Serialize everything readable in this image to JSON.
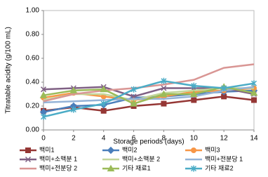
{
  "chart_data": {
    "type": "line",
    "y_label": "Titratable acidity (g/100 mL)",
    "x_label": "Storage periods (days)",
    "x": [
      0,
      2,
      4,
      6,
      8,
      10,
      12,
      14
    ],
    "xlim": [
      0,
      14
    ],
    "xticks": [
      0,
      2,
      4,
      6,
      8,
      10,
      12,
      14
    ],
    "ylim": [
      0,
      1
    ],
    "yticks": [
      {
        "value": 0,
        "label": "0.00"
      },
      {
        "value": 0.2,
        "label": "0.20"
      },
      {
        "value": 0.4,
        "label": "0.40"
      },
      {
        "value": 0.6,
        "label": "0.60"
      },
      {
        "value": 0.8,
        "label": "0.80"
      },
      {
        "value": 1,
        "label": "1.00"
      }
    ],
    "grid": false,
    "legend": "bottom",
    "series": [
      {
        "name": "백미1",
        "color": "#953735",
        "marker": "square",
        "values": [
          0.16,
          0.19,
          0.16,
          0.2,
          0.22,
          0.25,
          0.28,
          0.25
        ]
      },
      {
        "name": "백미2",
        "color": "#4a7ebb",
        "marker": "diamond",
        "values": [
          0.15,
          0.2,
          0.21,
          0.27,
          0.28,
          0.3,
          0.32,
          0.33
        ]
      },
      {
        "name": "백미3",
        "color": "#f79646",
        "marker": "circle",
        "values": [
          0.27,
          0.31,
          0.28,
          0.25,
          0.28,
          0.32,
          0.33,
          0.35
        ]
      },
      {
        "name": "백미+소맥분 1",
        "color": "#7f6084",
        "marker": "x",
        "values": [
          0.34,
          0.35,
          0.36,
          0.28,
          0.35,
          0.35,
          0.35,
          0.3
        ]
      },
      {
        "name": "백미+소맥분 2",
        "color": "#c3d69b",
        "marker": "none",
        "values": [
          0.25,
          0.3,
          0.3,
          0.25,
          0.31,
          0.33,
          0.35,
          0.35
        ]
      },
      {
        "name": "백미+전분당 1",
        "color": "#95b3d7",
        "marker": "none",
        "values": [
          0.23,
          0.24,
          0.25,
          0.26,
          0.26,
          0.28,
          0.33,
          0.36
        ]
      },
      {
        "name": "백미+전분당 2",
        "color": "#d99694",
        "marker": "none",
        "values": [
          0.24,
          0.3,
          0.33,
          0.35,
          0.38,
          0.42,
          0.52,
          0.55
        ]
      },
      {
        "name": "기타 재료1",
        "color": "#9bbb59",
        "marker": "triangle",
        "values": [
          0.29,
          0.33,
          0.34,
          0.22,
          0.3,
          0.3,
          0.36,
          0.31
        ]
      },
      {
        "name": "기타 재료2",
        "color": "#4bacc6",
        "marker": "star",
        "values": [
          0.11,
          0.17,
          0.22,
          0.34,
          0.41,
          0.37,
          0.35,
          0.39
        ]
      }
    ]
  }
}
